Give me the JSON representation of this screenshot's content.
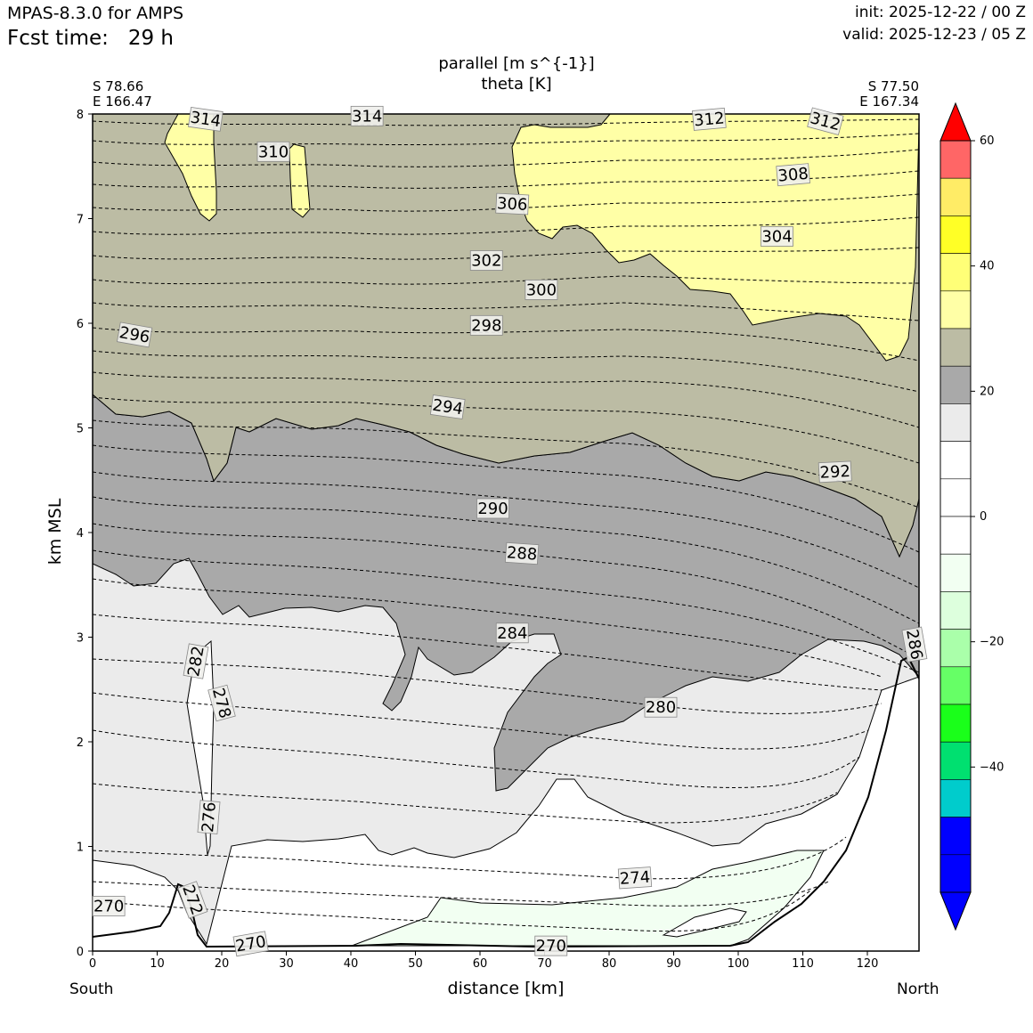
{
  "header": {
    "model": "MPAS-8.3.0 for AMPS",
    "fcst_label": "Fcst time:",
    "fcst_value": "29 h",
    "fcst_text": "Fcst time:   29 h",
    "init": "init: 2025-12-22 / 00 Z",
    "valid": "valid: 2025-12-23 / 05 Z"
  },
  "chart_data": {
    "type": "contour",
    "title_line1": "parallel [m s^{-1}]",
    "title_line2": "theta [K]",
    "left_endpoint": {
      "lat": "S 78.66",
      "lon": "E 166.47"
    },
    "right_endpoint": {
      "lat": "S 77.50",
      "lon": "E 167.34"
    },
    "xlabel": "distance [km]",
    "ylabel": "km MSL",
    "x_end_labels": {
      "left": "South",
      "right": "North"
    },
    "xlim": [
      0,
      128
    ],
    "ylim": [
      0,
      8
    ],
    "xticks": [
      "0",
      "10",
      "20",
      "30",
      "40",
      "50",
      "60",
      "70",
      "80",
      "90",
      "100",
      "110",
      "120"
    ],
    "yticks": [
      "0",
      "1",
      "2",
      "3",
      "4",
      "5",
      "6",
      "7",
      "8"
    ],
    "colorbar": {
      "range": [
        -60,
        60
      ],
      "step": 5.714,
      "tick_labels": [
        "60",
        "40",
        "20",
        "0",
        "−20",
        "−40"
      ],
      "tick_values": [
        60,
        40,
        20,
        0,
        -20,
        -40
      ],
      "extend": "both",
      "colors": [
        "#0000ff",
        "#0000ff",
        "#0000ff",
        "#00cccc",
        "#00e070",
        "#1aff1a",
        "#66ff66",
        "#aaffaa",
        "#ddffdd",
        "#f2fff2",
        "#ffffff",
        "#ffffff",
        "#ffffff",
        "#ebebeb",
        "#a9a9a9",
        "#bcbca4",
        "#ffffa6",
        "#ffff77",
        "#ffff26",
        "#ffec66",
        "#ff6666",
        "#ff0000"
      ]
    },
    "shaded_regions": [
      {
        "name": "parallel wind 20-25",
        "color": "#bcbca4"
      },
      {
        "name": "parallel wind 15-20",
        "color": "#a9a9a9"
      },
      {
        "name": "parallel wind 10-15",
        "color": "#ebebeb"
      },
      {
        "name": "parallel wind 25-30",
        "color": "#ffffa6"
      },
      {
        "name": "parallel wind -5-0",
        "color": "#f2fff2"
      }
    ],
    "theta_labels": [
      {
        "text": "314",
        "x": 17.5,
        "y": 7.95,
        "rot": 8
      },
      {
        "text": "314",
        "x": 42.5,
        "y": 7.98,
        "rot": 0
      },
      {
        "text": "312",
        "x": 95.5,
        "y": 7.95,
        "rot": -5
      },
      {
        "text": "312",
        "x": 113.5,
        "y": 7.93,
        "rot": 15
      },
      {
        "text": "310",
        "x": 28,
        "y": 7.64,
        "rot": 0
      },
      {
        "text": "308",
        "x": 108.5,
        "y": 7.42,
        "rot": -5
      },
      {
        "text": "306",
        "x": 65,
        "y": 7.14,
        "rot": 3
      },
      {
        "text": "304",
        "x": 106,
        "y": 6.83,
        "rot": 0
      },
      {
        "text": "302",
        "x": 61,
        "y": 6.6,
        "rot": 0
      },
      {
        "text": "300",
        "x": 69.5,
        "y": 6.32,
        "rot": 0
      },
      {
        "text": "298",
        "x": 61,
        "y": 5.98,
        "rot": 0
      },
      {
        "text": "296",
        "x": 6.5,
        "y": 5.89,
        "rot": 10
      },
      {
        "text": "294",
        "x": 55,
        "y": 5.2,
        "rot": 8
      },
      {
        "text": "292",
        "x": 115,
        "y": 4.58,
        "rot": -3
      },
      {
        "text": "290",
        "x": 62,
        "y": 4.23,
        "rot": 0
      },
      {
        "text": "288",
        "x": 66.5,
        "y": 3.8,
        "rot": 4
      },
      {
        "text": "286",
        "x": 127.3,
        "y": 2.93,
        "rot": 80
      },
      {
        "text": "284",
        "x": 65,
        "y": 3.04,
        "rot": 0
      },
      {
        "text": "282",
        "x": 16,
        "y": 2.77,
        "rot": -80
      },
      {
        "text": "280",
        "x": 88,
        "y": 2.33,
        "rot": 0
      },
      {
        "text": "278",
        "x": 20,
        "y": 2.37,
        "rot": 75
      },
      {
        "text": "276",
        "x": 18,
        "y": 1.28,
        "rot": -85
      },
      {
        "text": "274",
        "x": 84,
        "y": 0.7,
        "rot": -4
      },
      {
        "text": "272",
        "x": 15.5,
        "y": 0.49,
        "rot": 70
      },
      {
        "text": "270",
        "x": 2.5,
        "y": 0.43,
        "rot": 0
      },
      {
        "text": "270",
        "x": 24.5,
        "y": 0.07,
        "rot": -10
      },
      {
        "text": "270",
        "x": 71,
        "y": 0.05,
        "rot": 0
      }
    ]
  }
}
